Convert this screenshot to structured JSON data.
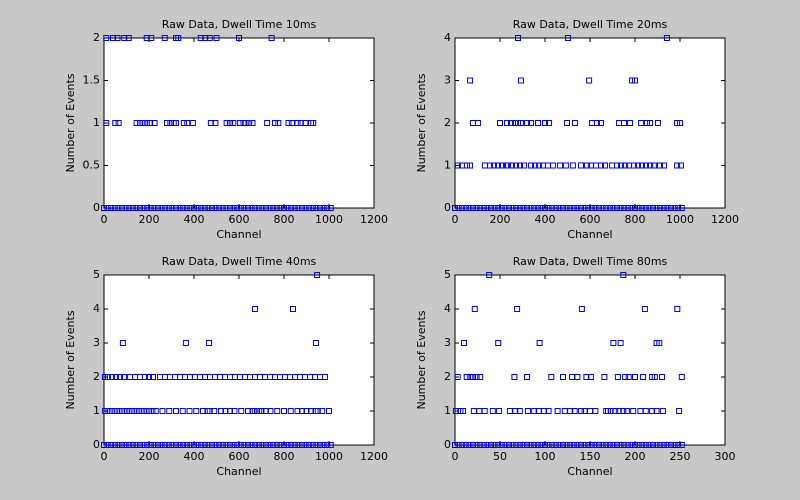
{
  "chart_data": [
    {
      "type": "scatter",
      "title": "Raw Data, Dwell Time 10ms",
      "xlabel": "Channel",
      "ylabel": "Number of Events",
      "color": "#0000ff",
      "xlim": [
        0,
        1200
      ],
      "xticks": [
        0,
        200,
        400,
        600,
        800,
        1000,
        1200
      ],
      "ylim": [
        0,
        2
      ],
      "yticks": [
        0,
        0.5,
        1,
        1.5,
        2
      ],
      "x": [
        10,
        40,
        60,
        90,
        110,
        190,
        210,
        270,
        320,
        330,
        430,
        450,
        470,
        500,
        600,
        745,
        10,
        50,
        65,
        145,
        160,
        175,
        190,
        205,
        225,
        280,
        295,
        310,
        320,
        355,
        370,
        395,
        475,
        495,
        545,
        560,
        575,
        605,
        620,
        630,
        645,
        660,
        725,
        760,
        775,
        820,
        835,
        860,
        875,
        895,
        920,
        930,
        0,
        16,
        32,
        48,
        64,
        80,
        96,
        112,
        128,
        144,
        160,
        176,
        192,
        208,
        224,
        240,
        256,
        272,
        288,
        304,
        320,
        336,
        352,
        368,
        384,
        400,
        416,
        432,
        448,
        464,
        480,
        496,
        512,
        528,
        544,
        560,
        576,
        592,
        608,
        624,
        640,
        656,
        672,
        688,
        704,
        720,
        736,
        752,
        768,
        784,
        800,
        816,
        832,
        848,
        864,
        880,
        896,
        912,
        928,
        944,
        960,
        976,
        992,
        1008
      ],
      "values": [
        2,
        2,
        2,
        2,
        2,
        2,
        2,
        2,
        2,
        2,
        2,
        2,
        2,
        2,
        2,
        2,
        1,
        1,
        1,
        1,
        1,
        1,
        1,
        1,
        1,
        1,
        1,
        1,
        1,
        1,
        1,
        1,
        1,
        1,
        1,
        1,
        1,
        1,
        1,
        1,
        1,
        1,
        1,
        1,
        1,
        1,
        1,
        1,
        1,
        1,
        1,
        1,
        0,
        0,
        0,
        0,
        0,
        0,
        0,
        0,
        0,
        0,
        0,
        0,
        0,
        0,
        0,
        0,
        0,
        0,
        0,
        0,
        0,
        0,
        0,
        0,
        0,
        0,
        0,
        0,
        0,
        0,
        0,
        0,
        0,
        0,
        0,
        0,
        0,
        0,
        0,
        0,
        0,
        0,
        0,
        0,
        0,
        0,
        0,
        0,
        0,
        0,
        0,
        0,
        0,
        0,
        0,
        0,
        0,
        0,
        0,
        0,
        0,
        0,
        0,
        0
      ]
    },
    {
      "type": "scatter",
      "title": "Raw Data, Dwell Time 20ms",
      "xlabel": "Channel",
      "ylabel": "Number of Events",
      "color": "#0000ff",
      "xlim": [
        0,
        1200
      ],
      "xticks": [
        0,
        200,
        400,
        600,
        800,
        1000,
        1200
      ],
      "ylim": [
        0,
        4
      ],
      "yticks": [
        0,
        1,
        2,
        3,
        4
      ],
      "x": [
        280,
        502,
        942,
        67,
        293,
        596,
        787,
        800,
        80,
        102,
        200,
        231,
        249,
        267,
        280,
        293,
        320,
        338,
        369,
        400,
        418,
        498,
        533,
        609,
        631,
        649,
        729,
        751,
        778,
        827,
        853,
        867,
        902,
        987,
        1000,
        13,
        31,
        53,
        67,
        133,
        156,
        173,
        191,
        209,
        227,
        236,
        253,
        271,
        289,
        307,
        338,
        356,
        373,
        391,
        413,
        436,
        467,
        493,
        524,
        560,
        587,
        604,
        627,
        649,
        667,
        698,
        720,
        738,
        756,
        773,
        796,
        813,
        831,
        849,
        867,
        884,
        911,
        929,
        987,
        1004,
        0,
        16,
        32,
        48,
        64,
        80,
        96,
        112,
        128,
        144,
        160,
        176,
        192,
        208,
        224,
        240,
        256,
        272,
        288,
        304,
        320,
        336,
        352,
        368,
        384,
        400,
        416,
        432,
        448,
        464,
        480,
        496,
        512,
        528,
        544,
        560,
        576,
        592,
        608,
        624,
        640,
        656,
        672,
        688,
        704,
        720,
        736,
        752,
        768,
        784,
        800,
        816,
        832,
        848,
        864,
        880,
        896,
        912,
        928,
        944,
        960,
        976,
        992,
        1008
      ],
      "values": [
        4,
        4,
        4,
        3,
        3,
        3,
        3,
        3,
        2,
        2,
        2,
        2,
        2,
        2,
        2,
        2,
        2,
        2,
        2,
        2,
        2,
        2,
        2,
        2,
        2,
        2,
        2,
        2,
        2,
        2,
        2,
        2,
        2,
        2,
        2,
        1,
        1,
        1,
        1,
        1,
        1,
        1,
        1,
        1,
        1,
        1,
        1,
        1,
        1,
        1,
        1,
        1,
        1,
        1,
        1,
        1,
        1,
        1,
        1,
        1,
        1,
        1,
        1,
        1,
        1,
        1,
        1,
        1,
        1,
        1,
        1,
        1,
        1,
        1,
        1,
        1,
        1,
        1,
        1,
        1,
        0,
        0,
        0,
        0,
        0,
        0,
        0,
        0,
        0,
        0,
        0,
        0,
        0,
        0,
        0,
        0,
        0,
        0,
        0,
        0,
        0,
        0,
        0,
        0,
        0,
        0,
        0,
        0,
        0,
        0,
        0,
        0,
        0,
        0,
        0,
        0,
        0,
        0,
        0,
        0,
        0,
        0,
        0,
        0,
        0,
        0,
        0,
        0,
        0,
        0,
        0,
        0,
        0,
        0,
        0,
        0,
        0,
        0,
        0,
        0,
        0,
        0,
        0,
        0
      ]
    },
    {
      "type": "scatter",
      "title": "Raw Data, Dwell Time 40ms",
      "xlabel": "Channel",
      "ylabel": "Number of Events",
      "color": "#0000ff",
      "xlim": [
        0,
        1200
      ],
      "xticks": [
        0,
        200,
        400,
        600,
        800,
        1000,
        1200
      ],
      "ylim": [
        0,
        5
      ],
      "yticks": [
        0,
        1,
        2,
        3,
        4,
        5
      ],
      "x": [
        947,
        671,
        840,
        84,
        364,
        467,
        942,
        4,
        18,
        36,
        53,
        71,
        89,
        116,
        138,
        160,
        182,
        200,
        218,
        249,
        271,
        293,
        316,
        338,
        360,
        382,
        404,
        427,
        449,
        471,
        493,
        516,
        538,
        560,
        582,
        604,
        627,
        649,
        671,
        693,
        716,
        738,
        760,
        782,
        804,
        827,
        849,
        871,
        893,
        916,
        938,
        960,
        982,
        5,
        20,
        35,
        50,
        65,
        80,
        95,
        110,
        125,
        140,
        155,
        170,
        185,
        200,
        215,
        230,
        260,
        290,
        320,
        350,
        380,
        410,
        440,
        460,
        470,
        490,
        520,
        540,
        560,
        580,
        610,
        640,
        660,
        670,
        680,
        690,
        700,
        720,
        740,
        770,
        800,
        830,
        860,
        880,
        900,
        920,
        940,
        950,
        970,
        1000,
        0,
        16,
        32,
        48,
        64,
        80,
        96,
        112,
        128,
        144,
        160,
        176,
        192,
        208,
        224,
        240,
        256,
        272,
        288,
        304,
        320,
        336,
        352,
        368,
        384,
        400,
        416,
        432,
        448,
        464,
        480,
        496,
        512,
        528,
        544,
        560,
        576,
        592,
        608,
        624,
        640,
        656,
        672,
        688,
        704,
        720,
        736,
        752,
        768,
        784,
        800,
        816,
        832,
        848,
        864,
        880,
        896,
        912,
        928,
        944,
        960,
        976,
        992,
        1008
      ],
      "values": [
        5,
        4,
        4,
        3,
        3,
        3,
        3,
        2,
        2,
        2,
        2,
        2,
        2,
        2,
        2,
        2,
        2,
        2,
        2,
        2,
        2,
        2,
        2,
        2,
        2,
        2,
        2,
        2,
        2,
        2,
        2,
        2,
        2,
        2,
        2,
        2,
        2,
        2,
        2,
        2,
        2,
        2,
        2,
        2,
        2,
        2,
        2,
        2,
        2,
        2,
        2,
        2,
        2,
        1,
        1,
        1,
        1,
        1,
        1,
        1,
        1,
        1,
        1,
        1,
        1,
        1,
        1,
        1,
        1,
        1,
        1,
        1,
        1,
        1,
        1,
        1,
        1,
        1,
        1,
        1,
        1,
        1,
        1,
        1,
        1,
        1,
        1,
        1,
        1,
        1,
        1,
        1,
        1,
        1,
        1,
        1,
        1,
        1,
        1,
        1,
        1,
        1,
        1,
        0,
        0,
        0,
        0,
        0,
        0,
        0,
        0,
        0,
        0,
        0,
        0,
        0,
        0,
        0,
        0,
        0,
        0,
        0,
        0,
        0,
        0,
        0,
        0,
        0,
        0,
        0,
        0,
        0,
        0,
        0,
        0,
        0,
        0,
        0,
        0,
        0,
        0,
        0,
        0,
        0,
        0,
        0,
        0,
        0,
        0,
        0,
        0,
        0,
        0,
        0,
        0,
        0,
        0,
        0,
        0,
        0,
        0,
        0,
        0,
        0,
        0,
        0,
        0
      ]
    },
    {
      "type": "scatter",
      "title": "Raw Data, Dwell Time 80ms",
      "xlabel": "Channel",
      "ylabel": "Number of Events",
      "color": "#0000ff",
      "xlim": [
        0,
        300
      ],
      "xticks": [
        0,
        50,
        100,
        150,
        200,
        250,
        300
      ],
      "ylim": [
        0,
        5
      ],
      "yticks": [
        0,
        1,
        2,
        3,
        4,
        5
      ],
      "x": [
        38,
        187,
        22,
        69,
        141,
        211,
        247,
        10,
        48,
        94,
        176,
        184,
        224,
        227,
        3,
        13,
        17,
        20,
        24,
        28,
        66,
        80,
        107,
        120,
        130,
        136,
        146,
        151,
        166,
        181,
        189,
        193,
        200,
        209,
        219,
        222,
        230,
        252,
        1,
        6,
        9,
        21,
        27,
        33,
        42,
        49,
        61,
        67,
        72,
        81,
        88,
        93,
        99,
        104,
        114,
        122,
        128,
        133,
        140,
        144,
        150,
        156,
        168,
        170,
        173,
        178,
        182,
        187,
        191,
        198,
        206,
        212,
        219,
        224,
        231,
        249,
        0,
        4,
        8,
        12,
        16,
        20,
        24,
        28,
        32,
        36,
        40,
        44,
        48,
        52,
        56,
        60,
        64,
        68,
        72,
        76,
        80,
        84,
        88,
        92,
        96,
        100,
        104,
        108,
        112,
        116,
        120,
        124,
        128,
        132,
        136,
        140,
        144,
        148,
        152,
        156,
        160,
        164,
        168,
        172,
        176,
        180,
        184,
        188,
        192,
        196,
        200,
        204,
        208,
        212,
        216,
        220,
        224,
        228,
        232,
        236,
        240,
        244,
        248,
        252
      ],
      "values": [
        5,
        5,
        4,
        4,
        4,
        4,
        4,
        3,
        3,
        3,
        3,
        3,
        3,
        3,
        2,
        2,
        2,
        2,
        2,
        2,
        2,
        2,
        2,
        2,
        2,
        2,
        2,
        2,
        2,
        2,
        2,
        2,
        2,
        2,
        2,
        2,
        2,
        2,
        1,
        1,
        1,
        1,
        1,
        1,
        1,
        1,
        1,
        1,
        1,
        1,
        1,
        1,
        1,
        1,
        1,
        1,
        1,
        1,
        1,
        1,
        1,
        1,
        1,
        1,
        1,
        1,
        1,
        1,
        1,
        1,
        1,
        1,
        1,
        1,
        1,
        1,
        0,
        0,
        0,
        0,
        0,
        0,
        0,
        0,
        0,
        0,
        0,
        0,
        0,
        0,
        0,
        0,
        0,
        0,
        0,
        0,
        0,
        0,
        0,
        0,
        0,
        0,
        0,
        0,
        0,
        0,
        0,
        0,
        0,
        0,
        0,
        0,
        0,
        0,
        0,
        0,
        0,
        0,
        0,
        0,
        0,
        0,
        0,
        0,
        0,
        0,
        0,
        0,
        0,
        0,
        0,
        0,
        0,
        0,
        0,
        0,
        0,
        0,
        0,
        0
      ]
    }
  ]
}
